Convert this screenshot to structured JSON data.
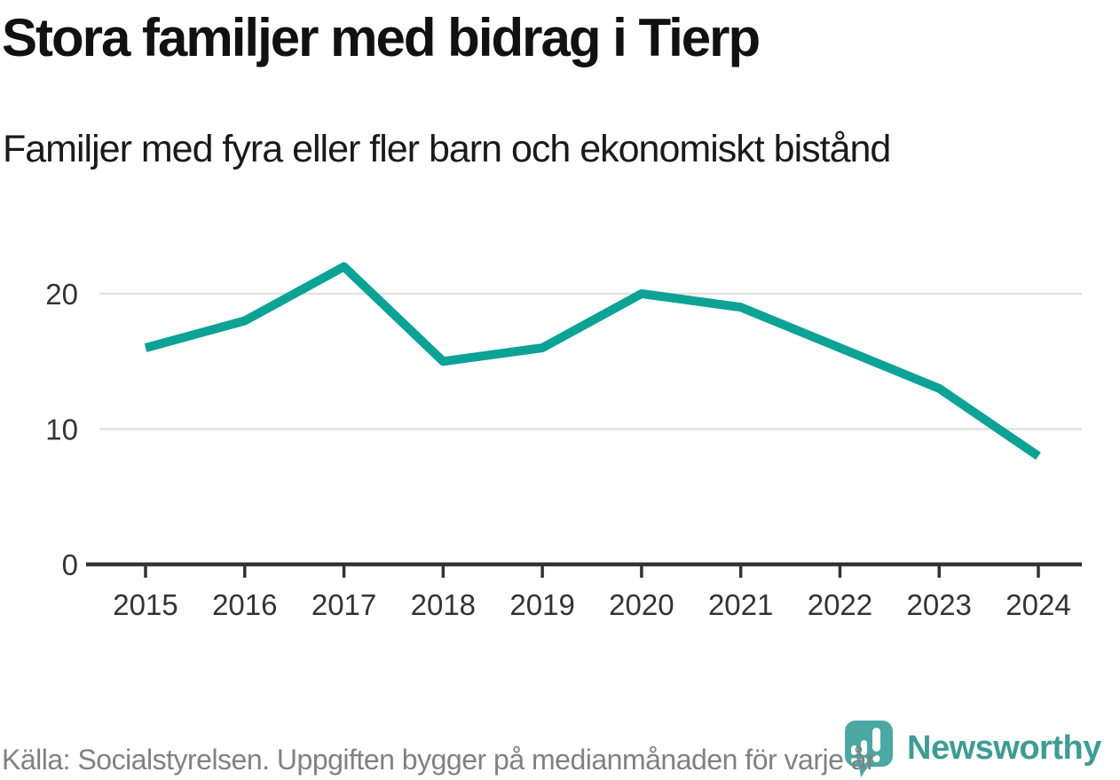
{
  "header": {
    "title": "Stora familjer med bidrag i Tierp",
    "subtitle": "Familjer med fyra eller fler barn och ekonomiskt bistånd"
  },
  "footer": {
    "source": "Källa: Socialstyrelsen. Uppgiften bygger på medianmånaden för varje år",
    "brand": {
      "name": "Newsworthy",
      "icon": "newsworthy-bubble-bar-chart-icon"
    }
  },
  "colors": {
    "line": "#0DA296",
    "grid": "#E2E2E2",
    "axis": "#333333",
    "tick_label": "#333333",
    "title_text": "#111111",
    "footer_text": "#818181",
    "brand_teal": "#3E9C95",
    "logo_bubble": "#4BA8A3"
  },
  "chart_data": {
    "type": "line",
    "title": "Stora familjer med bidrag i Tierp",
    "subtitle": "Familjer med fyra eller fler barn och ekonomiskt bistånd",
    "x": [
      2015,
      2016,
      2017,
      2018,
      2019,
      2020,
      2021,
      2022,
      2023,
      2024
    ],
    "series": [
      {
        "name": "Familjer med fyra eller fler barn och ekonomiskt bistånd",
        "values": [
          16,
          18,
          22,
          15,
          16,
          20,
          19,
          16,
          13,
          8
        ]
      }
    ],
    "xlabel": "",
    "ylabel": "",
    "ylim": [
      0,
      25
    ],
    "yticks": [
      0,
      10,
      20
    ],
    "grid": "horizontal",
    "legend": "none"
  }
}
